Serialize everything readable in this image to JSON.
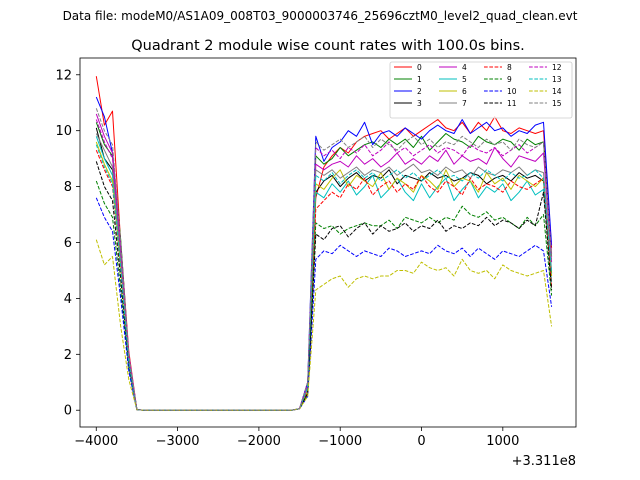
{
  "figure": {
    "suptitle": "Data file: modeM0/AS1A09_008T03_9000003746_25696cztM0_level2_quad_clean.evt"
  },
  "chart_data": {
    "type": "line",
    "title": "Quadrant 2 module wise count rates with 100.0s bins.",
    "xlabel": "",
    "ylabel": "",
    "x_offset_label": "+3.311e8",
    "xlim": [
      -4200,
      1900
    ],
    "ylim": [
      -0.6,
      12.6
    ],
    "xticks": [
      -4000,
      -3000,
      -2000,
      -1000,
      0,
      1000
    ],
    "xtick_labels": [
      "−4000",
      "−3000",
      "−2000",
      "−1000",
      "0",
      "1000"
    ],
    "yticks": [
      0,
      2,
      4,
      6,
      8,
      10,
      12
    ],
    "ytick_labels": [
      "0",
      "2",
      "4",
      "6",
      "8",
      "10",
      "12"
    ],
    "grid": false,
    "legend_location": "upper right",
    "legend_columns": 4,
    "x": [
      -4000,
      -3900,
      -3800,
      -3700,
      -3600,
      -3500,
      -3400,
      -3300,
      -3200,
      -3100,
      -3000,
      -2900,
      -2800,
      -2700,
      -2600,
      -2500,
      -2400,
      -2300,
      -2200,
      -2100,
      -2000,
      -1900,
      -1800,
      -1700,
      -1600,
      -1500,
      -1400,
      -1300,
      -1200,
      -1100,
      -1000,
      -900,
      -800,
      -700,
      -600,
      -500,
      -400,
      -300,
      -200,
      -100,
      0,
      100,
      200,
      300,
      400,
      500,
      600,
      700,
      800,
      900,
      1000,
      1100,
      1200,
      1300,
      1400,
      1500,
      1600
    ],
    "series": [
      {
        "name": "0",
        "color": "#ff0000",
        "dash": "solid",
        "values": [
          11.95,
          10.2,
          10.7,
          6.0,
          2.1,
          0.02,
          0,
          0,
          0,
          0,
          0,
          0,
          0,
          0,
          0,
          0,
          0,
          0,
          0,
          0,
          0,
          0,
          0,
          0,
          0,
          0.05,
          1.0,
          7.6,
          8.7,
          9.1,
          9.4,
          9.2,
          9.6,
          9.8,
          9.9,
          10.0,
          9.7,
          9.9,
          10.1,
          9.8,
          10.0,
          10.2,
          10.4,
          10.1,
          10.0,
          10.3,
          9.9,
          10.3,
          10.0,
          10.5,
          10.0,
          9.9,
          10.1,
          10.0,
          9.9,
          10.0,
          5.8
        ]
      },
      {
        "name": "1",
        "color": "#008000",
        "dash": "solid",
        "values": [
          10.3,
          9.5,
          9.1,
          6.1,
          1.9,
          0.02,
          0,
          0,
          0,
          0,
          0,
          0,
          0,
          0,
          0,
          0,
          0,
          0,
          0,
          0,
          0,
          0,
          0,
          0,
          0,
          0.05,
          0.9,
          9.1,
          8.8,
          9.0,
          9.4,
          9.1,
          9.3,
          9.5,
          9.6,
          9.4,
          9.7,
          9.5,
          9.7,
          9.4,
          9.8,
          9.3,
          9.6,
          9.9,
          9.7,
          9.6,
          9.4,
          9.8,
          9.6,
          9.5,
          9.7,
          9.6,
          9.3,
          9.7,
          9.5,
          9.6,
          5.5
        ]
      },
      {
        "name": "2",
        "color": "#0000ff",
        "dash": "solid",
        "values": [
          11.2,
          10.5,
          9.2,
          5.8,
          1.9,
          0.02,
          0,
          0,
          0,
          0,
          0,
          0,
          0,
          0,
          0,
          0,
          0,
          0,
          0,
          0,
          0,
          0,
          0,
          0,
          0,
          0.05,
          1.0,
          9.8,
          8.9,
          9.4,
          9.6,
          10.0,
          9.8,
          10.3,
          9.5,
          9.9,
          10.0,
          9.8,
          10.1,
          9.9,
          9.7,
          10.0,
          10.2,
          10.0,
          9.9,
          10.4,
          9.9,
          10.1,
          10.3,
          10.0,
          10.1,
          9.8,
          10.0,
          9.9,
          10.2,
          10.3,
          5.9
        ]
      },
      {
        "name": "3",
        "color": "#000000",
        "dash": "solid",
        "values": [
          10.1,
          9.0,
          8.6,
          5.4,
          1.8,
          0.02,
          0,
          0,
          0,
          0,
          0,
          0,
          0,
          0,
          0,
          0,
          0,
          0,
          0,
          0,
          0,
          0,
          0,
          0,
          0,
          0.05,
          0.8,
          7.8,
          8.2,
          8.4,
          8.0,
          8.3,
          8.5,
          8.2,
          8.4,
          8.3,
          8.6,
          8.1,
          8.4,
          8.3,
          8.2,
          8.5,
          8.3,
          8.4,
          8.2,
          8.3,
          8.5,
          8.4,
          8.1,
          8.3,
          8.4,
          8.2,
          8.5,
          8.3,
          8.4,
          8.2,
          4.9
        ]
      },
      {
        "name": "4",
        "color": "#bf00bf",
        "dash": "solid",
        "values": [
          10.6,
          9.8,
          9.2,
          5.9,
          2.0,
          0.02,
          0,
          0,
          0,
          0,
          0,
          0,
          0,
          0,
          0,
          0,
          0,
          0,
          0,
          0,
          0,
          0,
          0,
          0,
          0,
          0.05,
          0.9,
          8.8,
          8.6,
          8.8,
          8.9,
          8.7,
          9.1,
          8.8,
          9.0,
          8.7,
          8.9,
          9.2,
          8.8,
          9.0,
          8.8,
          9.1,
          8.9,
          9.3,
          8.8,
          9.1,
          8.9,
          9.0,
          8.8,
          9.4,
          9.0,
          8.7,
          9.1,
          9.0,
          8.9,
          9.2,
          5.3
        ]
      },
      {
        "name": "5",
        "color": "#00bfbf",
        "dash": "solid",
        "values": [
          9.8,
          9.0,
          8.4,
          5.3,
          1.8,
          0.02,
          0,
          0,
          0,
          0,
          0,
          0,
          0,
          0,
          0,
          0,
          0,
          0,
          0,
          0,
          0,
          0,
          0,
          0,
          0,
          0.05,
          0.8,
          7.8,
          7.6,
          8.1,
          7.8,
          8.2,
          7.7,
          8.0,
          8.4,
          7.6,
          7.9,
          8.3,
          7.8,
          7.5,
          8.1,
          7.6,
          8.0,
          8.3,
          7.5,
          7.9,
          8.2,
          7.6,
          8.0,
          7.8,
          8.1,
          7.5,
          7.8,
          8.2,
          7.7,
          7.9,
          4.6
        ]
      },
      {
        "name": "6",
        "color": "#bfbf00",
        "dash": "solid",
        "values": [
          9.6,
          8.8,
          8.2,
          5.1,
          1.7,
          0.02,
          0,
          0,
          0,
          0,
          0,
          0,
          0,
          0,
          0,
          0,
          0,
          0,
          0,
          0,
          0,
          0,
          0,
          0,
          0,
          0.05,
          0.7,
          8.1,
          7.9,
          8.3,
          8.6,
          8.0,
          8.4,
          8.2,
          8.0,
          8.5,
          7.9,
          8.3,
          8.1,
          7.8,
          8.4,
          8.2,
          7.9,
          8.6,
          8.0,
          8.3,
          8.2,
          7.8,
          8.5,
          8.1,
          8.3,
          7.9,
          8.4,
          8.2,
          8.0,
          8.3,
          4.8
        ]
      },
      {
        "name": "7",
        "color": "#808080",
        "dash": "solid",
        "values": [
          9.9,
          9.3,
          8.7,
          5.5,
          1.8,
          0.02,
          0,
          0,
          0,
          0,
          0,
          0,
          0,
          0,
          0,
          0,
          0,
          0,
          0,
          0,
          0,
          0,
          0,
          0,
          0,
          0.05,
          0.8,
          8.6,
          8.4,
          8.6,
          8.3,
          8.5,
          8.7,
          8.4,
          8.6,
          8.5,
          8.7,
          8.4,
          8.6,
          8.8,
          8.5,
          8.6,
          8.4,
          8.7,
          8.5,
          8.6,
          8.3,
          8.7,
          8.5,
          8.4,
          8.6,
          8.5,
          8.7,
          8.4,
          8.6,
          8.5,
          5.0
        ]
      },
      {
        "name": "8",
        "color": "#ff0000",
        "dash": "dashed",
        "values": [
          9.3,
          8.6,
          8.0,
          5.0,
          1.7,
          0.02,
          0,
          0,
          0,
          0,
          0,
          0,
          0,
          0,
          0,
          0,
          0,
          0,
          0,
          0,
          0,
          0,
          0,
          0,
          0,
          0.05,
          0.7,
          7.2,
          7.5,
          7.8,
          7.6,
          8.1,
          7.9,
          8.3,
          7.7,
          8.0,
          8.2,
          7.8,
          8.1,
          7.9,
          8.4,
          8.0,
          7.8,
          8.2,
          8.0,
          7.7,
          8.3,
          7.9,
          8.1,
          8.0,
          7.8,
          8.2,
          8.0,
          7.9,
          8.1,
          8.3,
          4.4
        ]
      },
      {
        "name": "9",
        "color": "#008000",
        "dash": "dashed",
        "values": [
          8.2,
          7.4,
          6.9,
          4.3,
          1.5,
          0.02,
          0,
          0,
          0,
          0,
          0,
          0,
          0,
          0,
          0,
          0,
          0,
          0,
          0,
          0,
          0,
          0,
          0,
          0,
          0,
          0.05,
          0.6,
          6.7,
          6.5,
          6.6,
          6.3,
          6.5,
          6.6,
          6.7,
          6.6,
          6.6,
          6.8,
          6.5,
          6.9,
          6.8,
          6.7,
          6.9,
          6.7,
          6.9,
          6.8,
          7.3,
          7.0,
          6.9,
          7.1,
          6.8,
          6.9,
          6.7,
          6.5,
          6.9,
          6.6,
          7.0,
          4.1
        ]
      },
      {
        "name": "10",
        "color": "#0000ff",
        "dash": "dashed",
        "values": [
          7.6,
          6.9,
          6.4,
          4.0,
          1.4,
          0.02,
          0,
          0,
          0,
          0,
          0,
          0,
          0,
          0,
          0,
          0,
          0,
          0,
          0,
          0,
          0,
          0,
          0,
          0,
          0,
          0.05,
          0.5,
          5.4,
          5.7,
          5.6,
          5.9,
          5.7,
          5.5,
          5.7,
          5.6,
          5.5,
          5.8,
          5.7,
          5.5,
          5.6,
          5.7,
          5.6,
          5.9,
          5.7,
          5.6,
          5.8,
          5.5,
          5.8,
          5.6,
          5.4,
          5.7,
          5.6,
          5.5,
          5.7,
          5.9,
          5.7,
          3.7
        ]
      },
      {
        "name": "11",
        "color": "#000000",
        "dash": "dashed",
        "values": [
          8.9,
          8.0,
          7.5,
          4.7,
          1.6,
          0.02,
          0,
          0,
          0,
          0,
          0,
          0,
          0,
          0,
          0,
          0,
          0,
          0,
          0,
          0,
          0,
          0,
          0,
          0,
          0,
          0.05,
          0.6,
          6.3,
          6.1,
          6.5,
          6.6,
          6.2,
          6.5,
          6.7,
          6.3,
          6.6,
          6.4,
          6.5,
          6.7,
          6.4,
          6.6,
          6.5,
          6.8,
          6.4,
          6.6,
          6.5,
          6.7,
          6.6,
          6.9,
          6.6,
          6.8,
          6.7,
          6.5,
          6.8,
          6.6,
          7.8,
          4.3
        ]
      },
      {
        "name": "12",
        "color": "#bf00bf",
        "dash": "dashed",
        "values": [
          10.4,
          9.6,
          9.0,
          5.7,
          1.9,
          0.02,
          0,
          0,
          0,
          0,
          0,
          0,
          0,
          0,
          0,
          0,
          0,
          0,
          0,
          0,
          0,
          0,
          0,
          0,
          0,
          0.05,
          0.9,
          9.4,
          9.1,
          9.3,
          9.0,
          9.4,
          9.2,
          9.5,
          9.1,
          9.3,
          9.6,
          9.2,
          9.4,
          9.1,
          9.3,
          9.5,
          9.2,
          9.4,
          9.3,
          9.1,
          9.5,
          9.3,
          9.2,
          9.4,
          9.1,
          9.3,
          9.5,
          9.2,
          9.4,
          9.6,
          5.6
        ]
      },
      {
        "name": "13",
        "color": "#00bfbf",
        "dash": "dashed",
        "values": [
          9.5,
          8.7,
          8.1,
          5.1,
          1.7,
          0.02,
          0,
          0,
          0,
          0,
          0,
          0,
          0,
          0,
          0,
          0,
          0,
          0,
          0,
          0,
          0,
          0,
          0,
          0,
          0,
          0.05,
          0.8,
          8.4,
          8.2,
          8.5,
          8.1,
          8.4,
          8.6,
          8.3,
          8.5,
          8.2,
          8.4,
          8.6,
          8.3,
          8.5,
          8.2,
          8.4,
          8.6,
          8.3,
          8.4,
          8.2,
          8.5,
          8.3,
          8.6,
          8.4,
          8.2,
          8.5,
          8.3,
          8.4,
          8.6,
          8.3,
          4.9
        ]
      },
      {
        "name": "14",
        "color": "#bfbf00",
        "dash": "dashed",
        "values": [
          6.1,
          5.2,
          5.5,
          3.0,
          1.1,
          0.02,
          0,
          0,
          0,
          0,
          0,
          0,
          0,
          0,
          0,
          0,
          0,
          0,
          0,
          0,
          0,
          0,
          0,
          0,
          0,
          0.05,
          0.5,
          4.3,
          4.5,
          4.7,
          4.8,
          4.4,
          4.7,
          4.8,
          4.7,
          4.8,
          4.8,
          5.0,
          5.0,
          4.9,
          5.3,
          5.1,
          5.0,
          5.1,
          4.8,
          5.4,
          5.0,
          4.9,
          5.0,
          4.7,
          5.2,
          5.0,
          4.9,
          4.8,
          4.9,
          5.0,
          3.0
        ]
      },
      {
        "name": "15",
        "color": "#808080",
        "dash": "dashed",
        "values": [
          10.8,
          10.0,
          9.5,
          6.0,
          2.0,
          0.02,
          0,
          0,
          0,
          0,
          0,
          0,
          0,
          0,
          0,
          0,
          0,
          0,
          0,
          0,
          0,
          0,
          0,
          0,
          0,
          0.05,
          1.0,
          9.6,
          9.3,
          9.5,
          9.7,
          9.4,
          9.6,
          9.8,
          9.4,
          9.7,
          9.5,
          9.3,
          9.6,
          9.8,
          9.5,
          9.7,
          9.4,
          9.6,
          9.5,
          9.8,
          9.6,
          9.4,
          9.7,
          9.5,
          9.6,
          9.3,
          9.7,
          9.5,
          9.4,
          9.6,
          5.4
        ]
      }
    ]
  }
}
